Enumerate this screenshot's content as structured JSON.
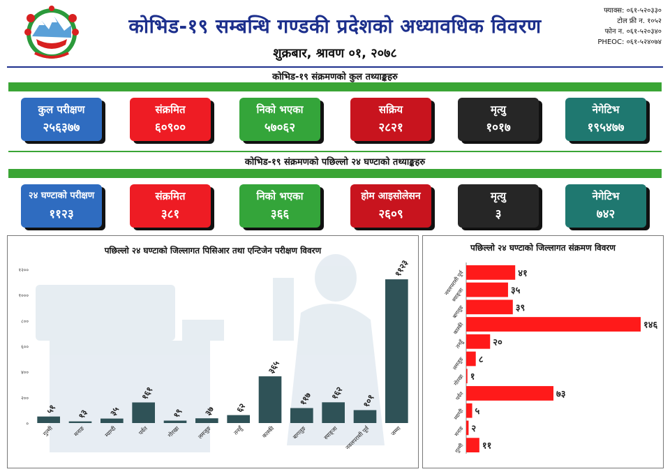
{
  "header": {
    "title": "कोभिड-१९ सम्बन्धि गण्डकी प्रदेशको अध्यावधिक विवरण",
    "date": "शुक्रबार, श्रावण ०१, २०७८",
    "contacts": [
      "फ्याक्स: ०६१-५२०३३०",
      "टोल फ्री न. १०५२",
      "फोन न. ०६१-५२०३४०",
      "PHEOC: ०६१-५२४०७४"
    ]
  },
  "total_section": {
    "label": "कोभिड-१९ संक्रमणको कुल तथ्याङ्कहरु",
    "cards": [
      {
        "label": "कुल परीक्षण",
        "value": "२५६३७७"
      },
      {
        "label": "संक्रमित",
        "value": "६०९००"
      },
      {
        "label": "निको भएका",
        "value": "५७०६२"
      },
      {
        "label": "सक्रिय",
        "value": "२८२१"
      },
      {
        "label": "मृत्यु",
        "value": "१०१७"
      },
      {
        "label": "नेगेटिभ",
        "value": "१९५४७७"
      }
    ]
  },
  "day_section": {
    "label": "कोभिड-१९ संक्रमणको पछिल्लो २४ घण्टाको तथ्याङ्कहरु",
    "cards": [
      {
        "label": "२४ घण्टाको परीक्षण",
        "value": "११२३"
      },
      {
        "label": "संक्रमित",
        "value": "३८१"
      },
      {
        "label": "निको भएका",
        "value": "३६६"
      },
      {
        "label": "होम आइसोलेसन",
        "value": "२६०९"
      },
      {
        "label": "मृत्यु",
        "value": "३"
      },
      {
        "label": "नेगेटिभ",
        "value": "७४२"
      }
    ]
  },
  "colors": {
    "title_blue": "#1c2f8c",
    "green": "#3aa535",
    "bar_dark": "#2f5257",
    "bar_red": "#ff1a1a"
  },
  "chart_data": [
    {
      "type": "bar",
      "title": "पछिल्लो २४ घण्टाको जिल्लागत पिसिआर तथा एन्टिजेन परीक्षण विवरण",
      "categories": [
        "गुल्मी",
        "मनाङ",
        "म्याग्दी",
        "पर्वत",
        "गोरखा",
        "लमजुङ",
        "तनहुँ",
        "कास्की",
        "बागलुङ",
        "स्याङ्जा",
        "नवलपरासी पूर्व",
        "जम्मा"
      ],
      "values": [
        51,
        13,
        35,
        161,
        19,
        37,
        62,
        365,
        117,
        162,
        101,
        1123
      ],
      "value_labels": [
        "५१",
        "१३",
        "३५",
        "१६१",
        "१९",
        "३७",
        "६२",
        "३६५",
        "११७",
        "१६२",
        "१०१",
        "११२३"
      ],
      "y_ticks": [
        0,
        200,
        400,
        600,
        800,
        1000,
        1200
      ],
      "y_tick_labels": [
        "०",
        "२००",
        "४००",
        "६००",
        "८००",
        "१०००",
        "१२००"
      ],
      "ylim": [
        0,
        1200
      ]
    },
    {
      "type": "bar",
      "orientation": "horizontal",
      "title": "पछिल्लो २४ घण्टाको जिल्लागत संक्रमण विवरण",
      "categories": [
        "नवलपरासी पूर्व",
        "स्याङ्जा",
        "बागलुङ",
        "कास्की",
        "तनहुँ",
        "लमजुङ",
        "गोरखा",
        "पर्वत",
        "म्याग्दी",
        "मनाङ",
        "गुल्मी"
      ],
      "values": [
        41,
        35,
        39,
        146,
        20,
        8,
        1,
        73,
        5,
        2,
        11
      ],
      "value_labels": [
        "४१",
        "३५",
        "३९",
        "१४६",
        "२०",
        "८",
        "१",
        "७३",
        "५",
        "२",
        "११"
      ],
      "xlim": [
        0,
        146
      ]
    }
  ]
}
